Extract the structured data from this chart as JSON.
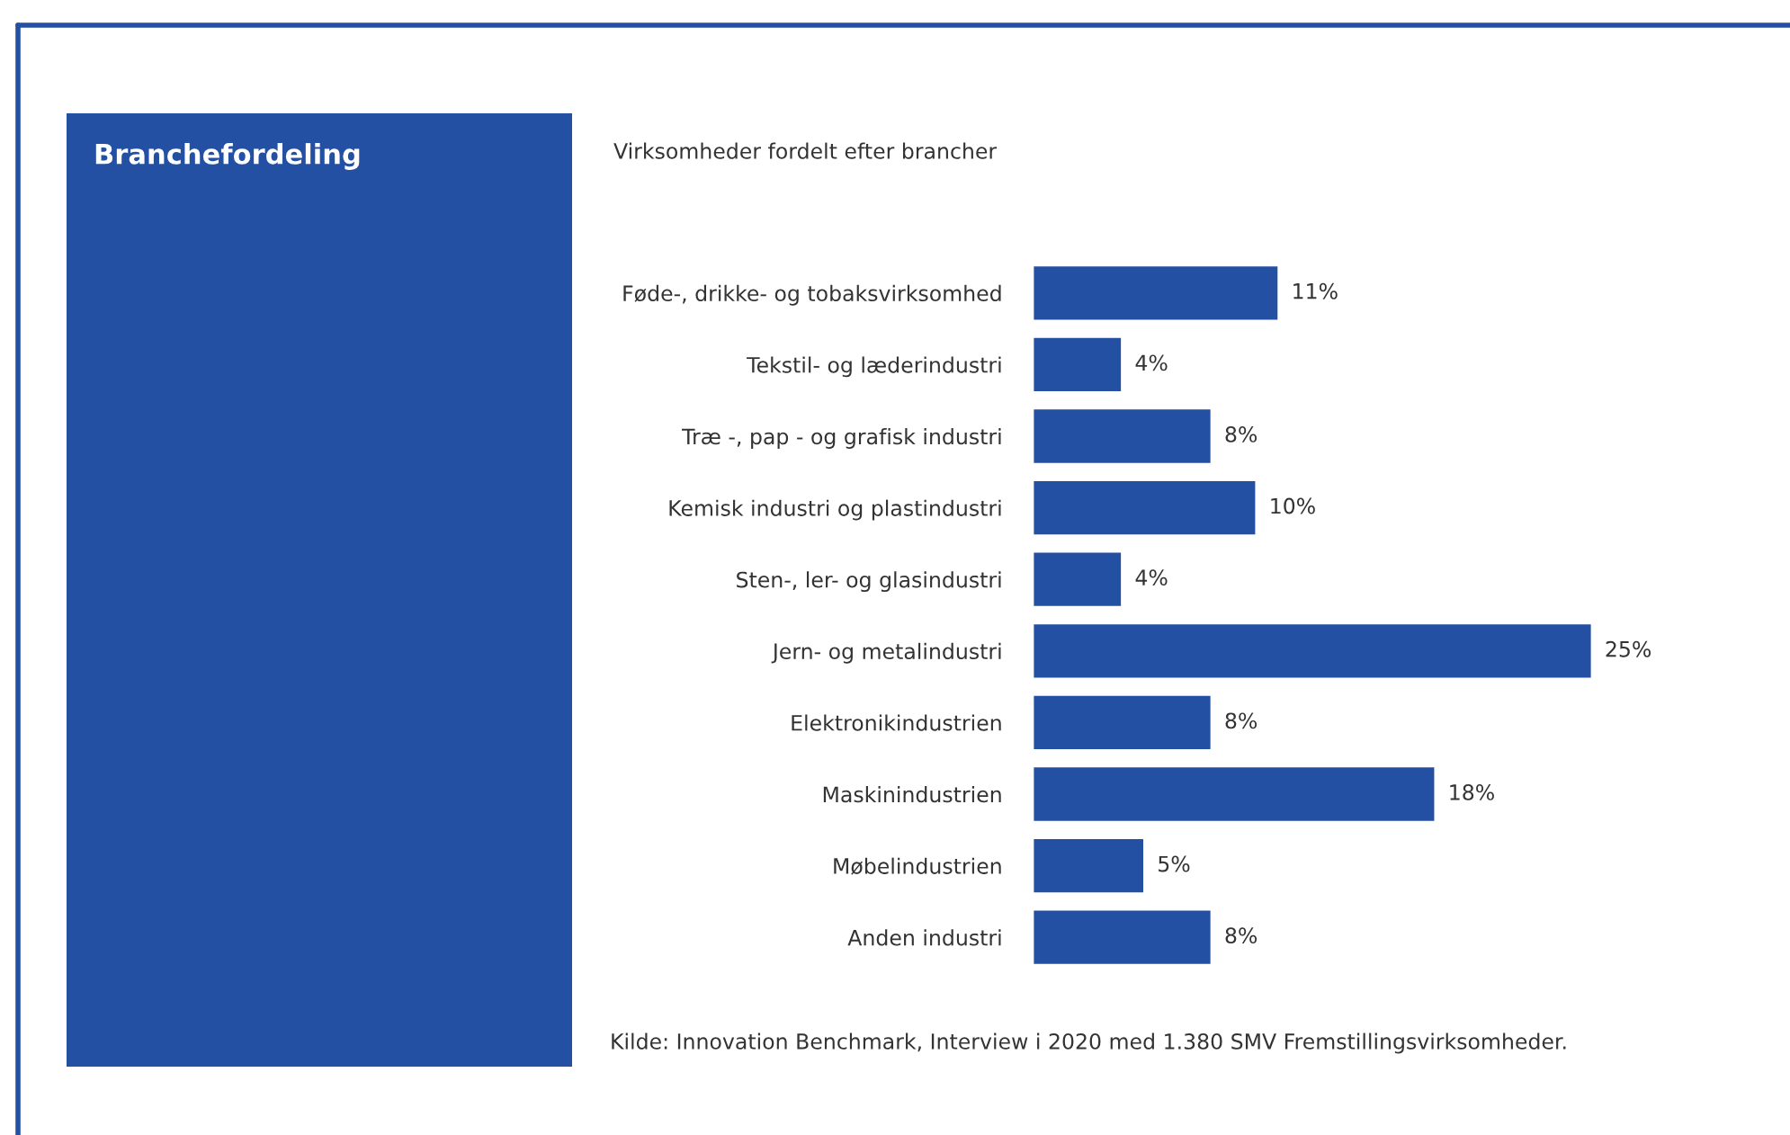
{
  "chart_data": {
    "type": "bar",
    "orientation": "horizontal",
    "title": "Branchefordeling",
    "subtitle": "Virksomheder fordelt efter brancher",
    "categories": [
      "Føde-, drikke- og tobaksvirksomhed",
      "Tekstil- og læderindustri",
      "Træ -, pap - og grafisk industri",
      "Kemisk industri og plastindustri",
      "Sten-, ler- og glasindustri",
      "Jern- og metalindustri",
      "Elektronikindustrien",
      "Maskinindustrien",
      "Møbelindustrien",
      "Anden industri"
    ],
    "values": [
      11,
      4,
      8,
      10,
      4,
      25,
      8,
      18,
      5,
      8
    ],
    "value_labels": [
      "11%",
      "4%",
      "8%",
      "10%",
      "4%",
      "25%",
      "8%",
      "18%",
      "5%",
      "8%"
    ],
    "color": "#2350a3",
    "annotations": [
      "Kilde: Innovation Benchmark, Interview i 2020 med 1.380 SMV Fremstillingsvirksomheder."
    ],
    "grid": false,
    "legend": false
  }
}
